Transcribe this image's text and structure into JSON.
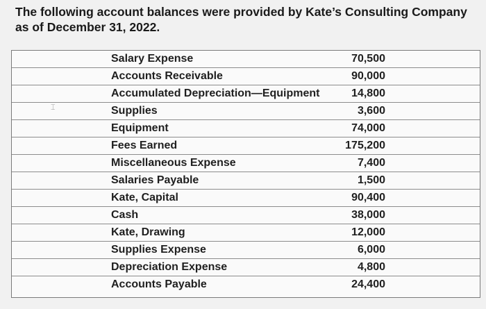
{
  "question": {
    "text": "The following account balances were provided by Kate’s Consulting Company as of December 31, 2022."
  },
  "accounts": [
    {
      "name": "Salary Expense",
      "amount": "70,500"
    },
    {
      "name": "Accounts Receivable",
      "amount": "90,000"
    },
    {
      "name": "Accumulated Depreciation—Equipment",
      "amount": "14,800"
    },
    {
      "name": "Supplies",
      "amount": "3,600"
    },
    {
      "name": "Equipment",
      "amount": "74,000"
    },
    {
      "name": "Fees Earned",
      "amount": "175,200"
    },
    {
      "name": "Miscellaneous Expense",
      "amount": "7,400"
    },
    {
      "name": "Salaries Payable",
      "amount": "1,500"
    },
    {
      "name": "Kate, Capital",
      "amount": "90,400"
    },
    {
      "name": "Cash",
      "amount": "38,000"
    },
    {
      "name": "Kate, Drawing",
      "amount": "12,000"
    },
    {
      "name": "Supplies Expense",
      "amount": "6,000"
    },
    {
      "name": "Depreciation Expense",
      "amount": "4,800"
    },
    {
      "name": "Accounts Payable",
      "amount": "24,400"
    }
  ],
  "icons": {
    "text_cursor": "text-cursor-icon"
  }
}
